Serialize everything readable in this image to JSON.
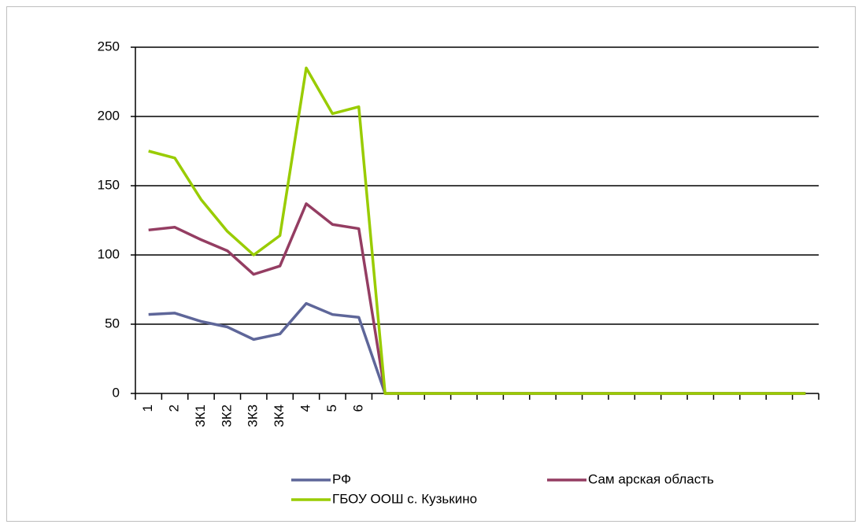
{
  "chart_data": {
    "type": "line",
    "categories": [
      "1",
      "2",
      "3К1",
      "3К2",
      "3К3",
      "3К4",
      "4",
      "5",
      "6",
      null,
      null,
      null,
      null,
      null,
      null,
      null,
      null,
      null,
      null,
      null,
      null,
      null,
      null,
      null,
      null,
      null
    ],
    "series": [
      {
        "name": "РФ",
        "color": "#5e6699",
        "values": [
          57,
          58,
          52,
          48,
          39,
          43,
          65,
          57,
          55,
          0,
          0,
          0,
          0,
          0,
          0,
          0,
          0,
          0,
          0,
          0,
          0,
          0,
          0,
          0,
          0,
          0
        ]
      },
      {
        "name": "Сам арская область",
        "color": "#943d62",
        "values": [
          118,
          120,
          111,
          103,
          86,
          92,
          137,
          122,
          119,
          0,
          0,
          0,
          0,
          0,
          0,
          0,
          0,
          0,
          0,
          0,
          0,
          0,
          0,
          0,
          0,
          0
        ]
      },
      {
        "name": "ГБОУ ООШ с. Кузькино",
        "color": "#99cc00",
        "values": [
          175,
          170,
          140,
          117,
          100,
          114,
          235,
          202,
          207,
          0,
          0,
          0,
          0,
          0,
          0,
          0,
          0,
          0,
          0,
          0,
          0,
          0,
          0,
          0,
          0,
          0
        ]
      }
    ],
    "ylim": [
      0,
      250
    ],
    "yticks": [
      0,
      50,
      100,
      150,
      200,
      250
    ],
    "grid": true
  }
}
